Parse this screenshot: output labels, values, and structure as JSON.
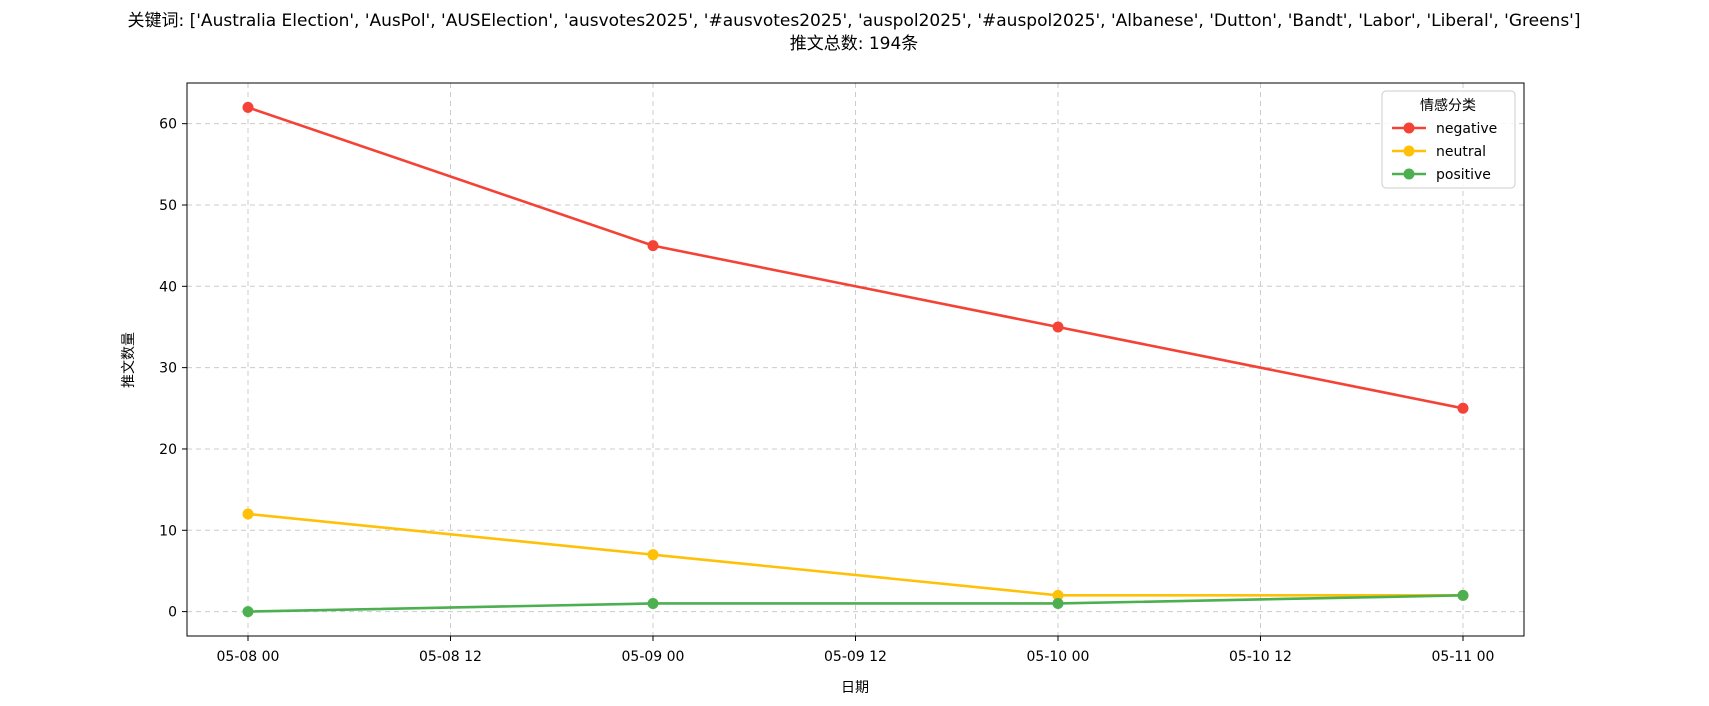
{
  "chart_data": {
    "type": "line",
    "title_line1": "关键词: ['Australia Election', 'AusPol', 'AUSElection', 'ausvotes2025', '#ausvotes2025', 'auspol2025', '#auspol2025', 'Albanese', 'Dutton', 'Bandt', 'Labor', 'Liberal', 'Greens']",
    "title_line2": "推文总数: 194条",
    "xlabel": "日期",
    "ylabel": "推文数量",
    "legend_title": "情感分类",
    "legend_position": "top-right",
    "grid": true,
    "x_range": [
      "05-08 00",
      "05-11 00"
    ],
    "ylim": [
      -3,
      65
    ],
    "x_ticks": [
      "05-08 00",
      "05-08 12",
      "05-09 00",
      "05-09 12",
      "05-10 00",
      "05-10 12",
      "05-11 00"
    ],
    "y_ticks": [
      0,
      10,
      20,
      30,
      40,
      50,
      60
    ],
    "x": [
      "05-08 00",
      "05-09 00",
      "05-10 00",
      "05-11 00"
    ],
    "series": [
      {
        "name": "negative",
        "color": "#f44336",
        "values": [
          62,
          45,
          35,
          25
        ]
      },
      {
        "name": "neutral",
        "color": "#ffc107",
        "values": [
          12,
          7,
          2,
          2
        ]
      },
      {
        "name": "positive",
        "color": "#4caf50",
        "values": [
          0,
          1,
          1,
          2
        ]
      }
    ]
  }
}
